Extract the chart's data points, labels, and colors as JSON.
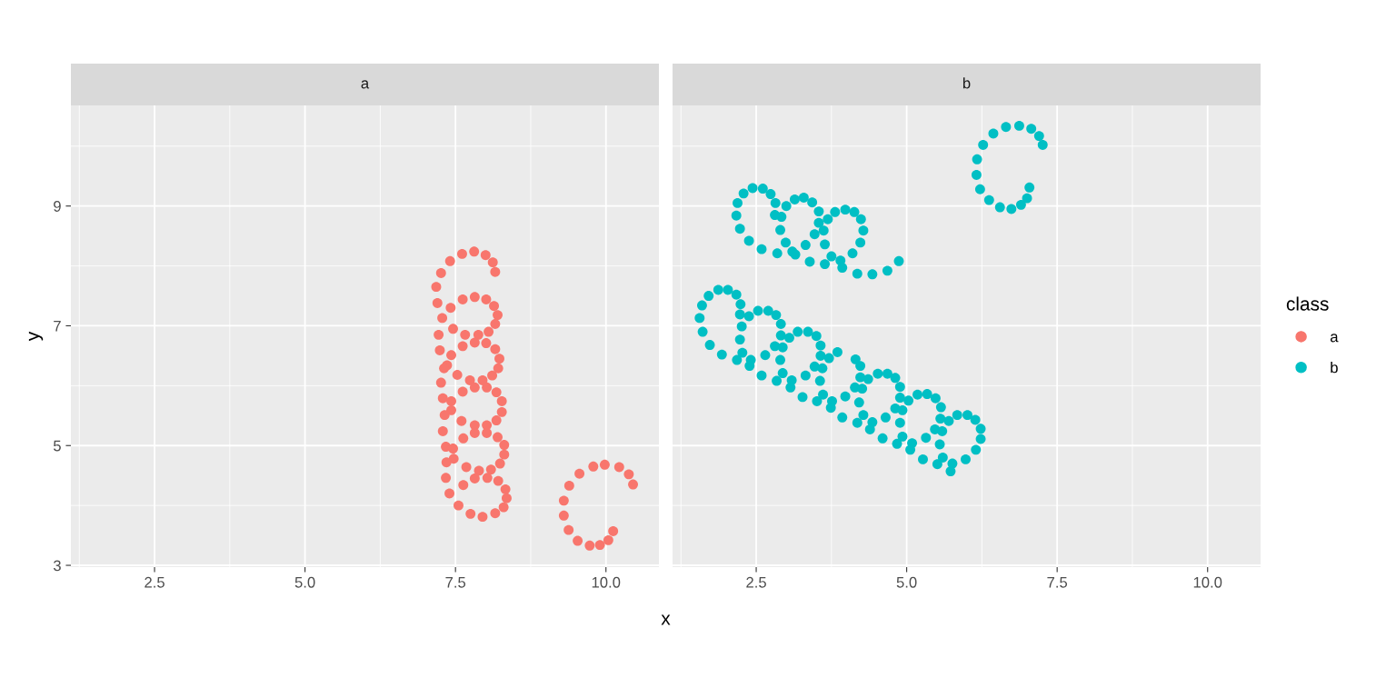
{
  "chart_data": [
    {
      "type": "scatter",
      "title": "a",
      "xlabel": "x",
      "ylabel": "y",
      "marker": "circle",
      "grid": true,
      "xlim": [
        1.11,
        10.88
      ],
      "ylim": [
        2.97,
        10.68
      ],
      "xticks": [
        {
          "value": 1.25,
          "label": null
        },
        {
          "value": 2.5,
          "label": "2.5"
        },
        {
          "value": 3.75,
          "label": null
        },
        {
          "value": 5,
          "label": "5.0"
        },
        {
          "value": 6.25,
          "label": null
        },
        {
          "value": 7.5,
          "label": "7.5"
        },
        {
          "value": 8.75,
          "label": null
        },
        {
          "value": 10,
          "label": "10.0"
        }
      ],
      "yticks": [
        3,
        {
          "value": 4,
          "label": null
        },
        5,
        {
          "value": 6,
          "label": null
        },
        7,
        {
          "value": 8,
          "label": null
        },
        9,
        {
          "value": 10,
          "label": null
        }
      ],
      "series": [
        {
          "name": "a",
          "color": "#f8766d",
          "x": [
            7.61,
            7.81,
            8.0,
            8.12,
            8.16,
            7.41,
            7.26,
            7.18,
            7.2,
            7.42,
            7.62,
            7.82,
            8.01,
            8.14,
            8.2,
            8.16,
            8.05,
            7.88,
            7.66,
            7.46,
            7.28,
            7.22,
            7.82,
            8.01,
            7.62,
            7.24,
            7.43,
            8.16,
            8.23,
            8.21,
            8.11,
            7.95,
            7.74,
            7.53,
            7.36,
            7.31,
            7.26,
            7.82,
            8.02,
            7.62,
            8.18,
            8.27,
            8.27,
            8.18,
            8.02,
            7.82,
            7.6,
            7.43,
            7.32,
            7.29,
            7.43,
            7.29,
            7.82,
            8.02,
            7.63,
            8.2,
            8.31,
            8.31,
            8.24,
            8.09,
            7.89,
            7.68,
            7.47,
            7.34,
            7.46,
            7.35,
            7.82,
            8.03,
            7.63,
            7.34,
            8.21,
            8.33,
            8.35,
            8.3,
            8.16,
            7.95,
            7.75,
            7.55,
            7.4,
            9.79,
            9.98,
            10.22,
            10.38,
            10.45,
            9.56,
            9.39,
            9.3,
            9.3,
            9.38,
            9.53,
            9.73,
            9.9,
            10.04,
            10.12
          ],
          "values": [
            8.2,
            8.24,
            8.18,
            8.06,
            7.9,
            8.08,
            7.88,
            7.65,
            7.38,
            7.3,
            7.44,
            7.48,
            7.44,
            7.33,
            7.18,
            7.03,
            6.9,
            6.85,
            6.85,
            6.95,
            7.13,
            6.85,
            6.72,
            6.71,
            6.66,
            6.59,
            6.51,
            6.61,
            6.45,
            6.29,
            6.17,
            6.09,
            6.09,
            6.18,
            6.34,
            6.29,
            6.05,
            5.97,
            5.97,
            5.9,
            5.89,
            5.74,
            5.56,
            5.42,
            5.34,
            5.34,
            5.41,
            5.59,
            5.51,
            5.79,
            5.74,
            5.24,
            5.21,
            5.21,
            5.12,
            5.14,
            5.01,
            4.85,
            4.7,
            4.6,
            4.58,
            4.64,
            4.78,
            4.98,
            4.95,
            4.72,
            4.45,
            4.46,
            4.34,
            4.46,
            4.41,
            4.27,
            4.12,
            3.97,
            3.87,
            3.81,
            3.86,
            4.0,
            4.2,
            4.65,
            4.68,
            4.64,
            4.52,
            4.35,
            4.53,
            4.33,
            4.08,
            3.83,
            3.59,
            3.41,
            3.33,
            3.34,
            3.42,
            3.57
          ]
        }
      ]
    },
    {
      "type": "scatter",
      "title": "b",
      "marker": "circle",
      "grid": true,
      "tick_labels": "x",
      "legend": "right",
      "legend_title": "class",
      "xlim": [
        1.11,
        10.88
      ],
      "ylim": [
        2.97,
        10.68
      ],
      "xticks": [
        {
          "value": 1.25,
          "label": null
        },
        {
          "value": 2.5,
          "label": "2.5"
        },
        {
          "value": 3.75,
          "label": null
        },
        {
          "value": 5,
          "label": "5.0"
        },
        {
          "value": 6.25,
          "label": null
        },
        {
          "value": 7.5,
          "label": "7.5"
        },
        {
          "value": 8.75,
          "label": null
        },
        {
          "value": 10,
          "label": "10.0"
        }
      ],
      "yticks": [
        3,
        {
          "value": 4,
          "label": null
        },
        5,
        {
          "value": 6,
          "label": null
        },
        7,
        {
          "value": 8,
          "label": null
        },
        9,
        {
          "value": 10,
          "label": null
        }
      ],
      "series": [
        {
          "name": "b",
          "color": "#00bfc4",
          "x": [
            2.29,
            2.44,
            2.61,
            2.74,
            2.82,
            3.0,
            3.14,
            3.29,
            3.43,
            3.54,
            3.69,
            3.81,
            3.98,
            4.13,
            4.24,
            4.28,
            4.23,
            4.1,
            3.9,
            3.93,
            3.75,
            3.64,
            3.64,
            3.62,
            3.54,
            3.47,
            3.32,
            3.39,
            3.15,
            3.1,
            2.99,
            2.9,
            2.92,
            2.81,
            2.85,
            2.59,
            2.38,
            2.23,
            2.17,
            2.19,
            4.18,
            4.43,
            4.68,
            4.87,
            6.65,
            6.87,
            7.07,
            7.2,
            7.26,
            6.44,
            6.27,
            6.17,
            6.16,
            6.22,
            6.37,
            6.55,
            6.74,
            6.9,
            7.0,
            7.04,
            1.71,
            1.87,
            2.03,
            2.17,
            2.24,
            1.6,
            1.56,
            1.61,
            1.73,
            1.93,
            2.18,
            2.27,
            2.41,
            2.39,
            2.59,
            2.23,
            2.26,
            2.23,
            2.38,
            2.53,
            2.7,
            2.83,
            2.91,
            2.91,
            3.05,
            2.81,
            2.94,
            2.65,
            2.9,
            2.94,
            2.84,
            3.09,
            3.07,
            3.19,
            3.36,
            3.5,
            3.57,
            3.57,
            3.71,
            3.85,
            3.47,
            3.6,
            3.32,
            3.56,
            3.27,
            3.51,
            3.61,
            3.76,
            3.74,
            3.93,
            3.98,
            4.15,
            4.23,
            4.23,
            4.36,
            4.52,
            4.68,
            4.81,
            4.89,
            4.89,
            5.03,
            5.18,
            5.34,
            5.48,
            5.57,
            5.56,
            5.7,
            5.84,
            6.01,
            6.14,
            6.23,
            6.23,
            6.15,
            5.98,
            5.76,
            5.73,
            5.6,
            5.51,
            5.55,
            5.47,
            5.59,
            5.32,
            5.27,
            5.09,
            5.06,
            4.93,
            4.84,
            4.89,
            4.81,
            4.93,
            4.65,
            4.6,
            4.43,
            4.39,
            4.28,
            4.18,
            4.21,
            4.14,
            4.26
          ],
          "values": [
            9.21,
            9.3,
            9.29,
            9.2,
            9.05,
            9.0,
            9.11,
            9.14,
            9.06,
            8.91,
            8.78,
            8.9,
            8.94,
            8.9,
            8.78,
            8.59,
            8.39,
            8.21,
            8.09,
            7.97,
            8.16,
            8.03,
            8.36,
            8.59,
            8.72,
            8.53,
            8.35,
            8.07,
            8.19,
            8.24,
            8.39,
            8.6,
            8.82,
            8.85,
            8.21,
            8.28,
            8.42,
            8.62,
            8.84,
            9.05,
            7.87,
            7.86,
            7.92,
            8.08,
            10.32,
            10.34,
            10.29,
            10.17,
            10.02,
            10.21,
            10.02,
            9.78,
            9.52,
            9.28,
            9.1,
            8.98,
            8.95,
            9.02,
            9.13,
            9.31,
            7.5,
            7.6,
            7.6,
            7.52,
            7.36,
            7.34,
            7.13,
            6.9,
            6.68,
            6.52,
            6.43,
            6.55,
            6.43,
            6.33,
            6.17,
            6.77,
            6.99,
            7.19,
            7.16,
            7.25,
            7.25,
            7.18,
            7.03,
            6.84,
            6.8,
            6.66,
            6.64,
            6.51,
            6.43,
            6.21,
            6.08,
            6.09,
            5.97,
            6.9,
            6.9,
            6.83,
            6.67,
            6.5,
            6.46,
            6.56,
            6.32,
            6.29,
            6.17,
            6.08,
            5.81,
            5.74,
            5.85,
            5.74,
            5.63,
            5.47,
            5.82,
            6.44,
            6.33,
            6.14,
            6.11,
            6.2,
            6.2,
            6.13,
            5.98,
            5.8,
            5.75,
            5.85,
            5.86,
            5.79,
            5.64,
            5.45,
            5.41,
            5.51,
            5.51,
            5.43,
            5.28,
            5.11,
            4.93,
            4.77,
            4.7,
            4.57,
            4.8,
            4.69,
            5.02,
            5.27,
            5.24,
            5.13,
            4.77,
            5.04,
            4.93,
            5.15,
            5.03,
            5.38,
            5.62,
            5.59,
            5.47,
            5.12,
            5.39,
            5.27,
            5.51,
            5.38,
            5.72,
            5.97,
            5.95
          ]
        }
      ]
    }
  ]
}
